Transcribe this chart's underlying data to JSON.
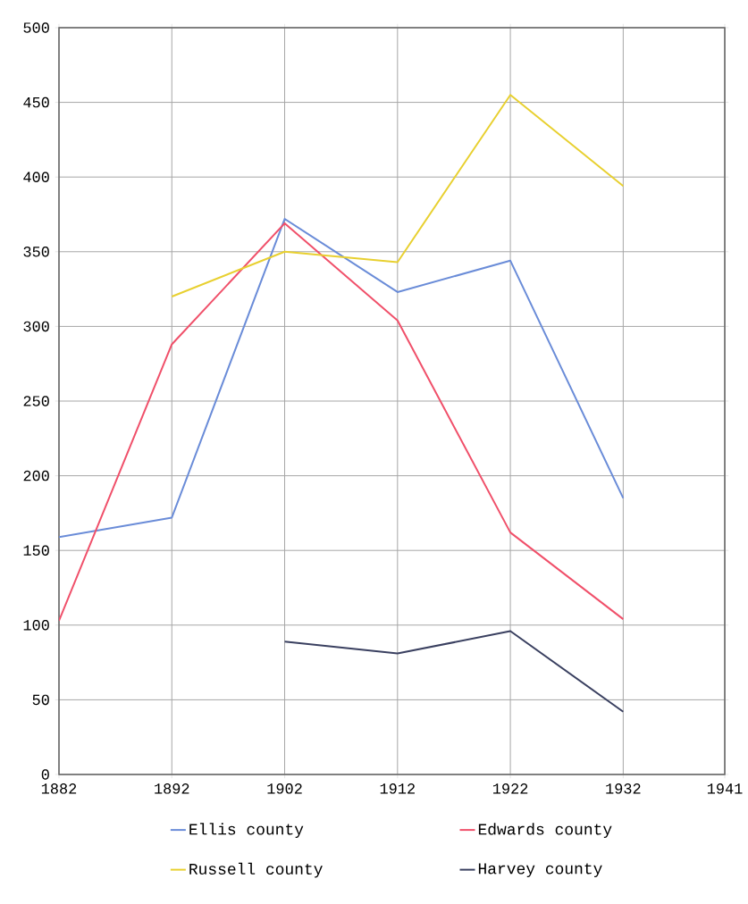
{
  "chart_data": {
    "type": "line",
    "xlim": [
      1882,
      1941
    ],
    "xticks": [
      1882,
      1892,
      1902,
      1912,
      1922,
      1932,
      1941
    ],
    "ylim": [
      0,
      500
    ],
    "yticks": [
      0,
      50,
      100,
      150,
      200,
      250,
      300,
      350,
      400,
      450,
      500
    ],
    "grid": true,
    "legend": "bottom",
    "series": [
      {
        "name": "Ellis county",
        "color": "#6a8cd8",
        "x": [
          1882,
          1892,
          1902,
          1912,
          1922,
          1932
        ],
        "values": [
          159,
          172,
          372,
          323,
          344,
          185
        ]
      },
      {
        "name": "Edwards county",
        "color": "#f0506a",
        "x": [
          1882,
          1892,
          1902,
          1912,
          1922,
          1932
        ],
        "values": [
          103,
          288,
          369,
          304,
          162,
          104
        ]
      },
      {
        "name": "Russell county",
        "color": "#e8d030",
        "x": [
          1892,
          1902,
          1912,
          1922,
          1932
        ],
        "values": [
          320,
          350,
          343,
          455,
          394
        ]
      },
      {
        "name": "Harvey county",
        "color": "#3a4060",
        "x": [
          1902,
          1912,
          1922,
          1932
        ],
        "values": [
          89,
          81,
          96,
          42
        ]
      }
    ]
  }
}
